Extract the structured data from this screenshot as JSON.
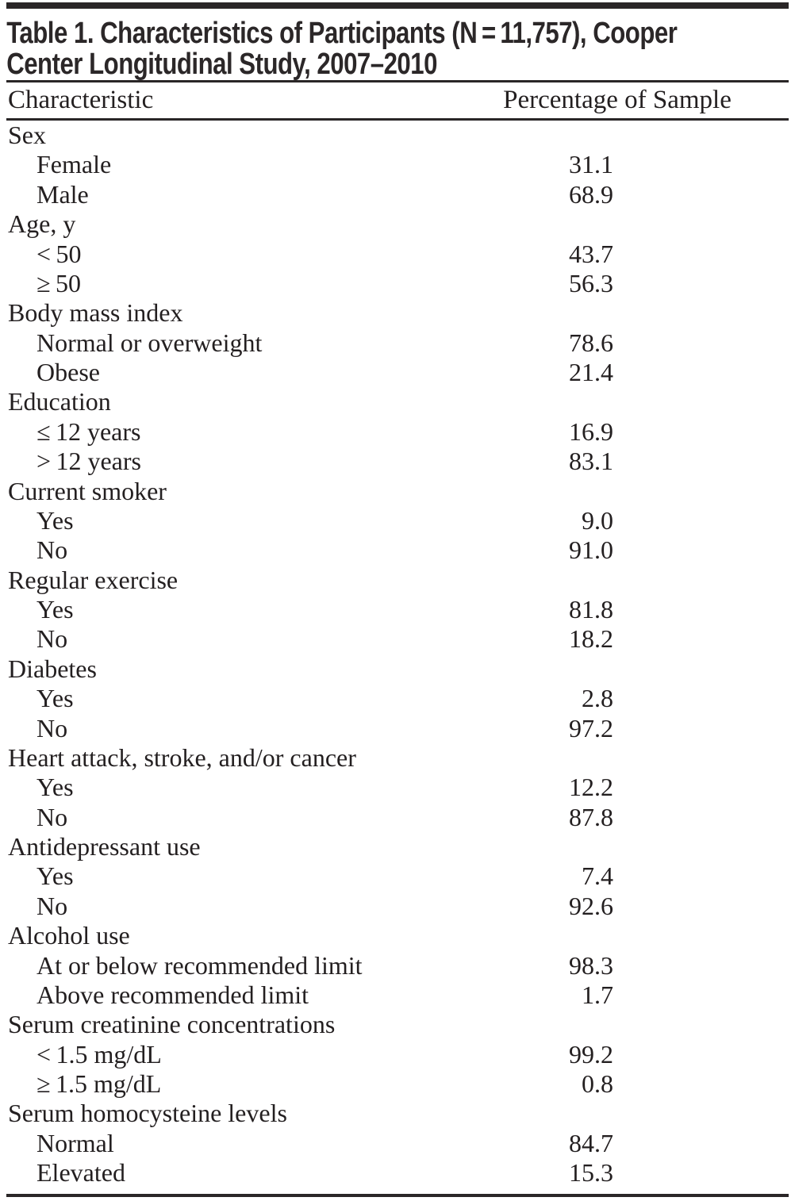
{
  "table": {
    "title": "Table 1. Characteristics of Participants (N = 11,757), Cooper Center Longitudinal Study, 2007–2010",
    "title_lines": [
      "Table 1. Characteristics of Participants (N = 11,757), Cooper",
      "Center Longitudinal Study, 2007–2010"
    ],
    "columns": [
      "Characteristic",
      "Percentage of Sample"
    ],
    "rows": [
      {
        "kind": "section",
        "label": "Sex",
        "value": ""
      },
      {
        "kind": "item",
        "label": "Female",
        "value": "31.1"
      },
      {
        "kind": "item",
        "label": "Male",
        "value": "68.9"
      },
      {
        "kind": "section",
        "label": "Age, y",
        "value": ""
      },
      {
        "kind": "item",
        "label": "< 50",
        "value": "43.7"
      },
      {
        "kind": "item",
        "label": "≥ 50",
        "value": "56.3"
      },
      {
        "kind": "section",
        "label": "Body mass index",
        "value": ""
      },
      {
        "kind": "item",
        "label": "Normal or overweight",
        "value": "78.6"
      },
      {
        "kind": "item",
        "label": "Obese",
        "value": "21.4"
      },
      {
        "kind": "section",
        "label": "Education",
        "value": ""
      },
      {
        "kind": "item",
        "label": "≤ 12 years",
        "value": "16.9"
      },
      {
        "kind": "item",
        "label": "> 12 years",
        "value": "83.1"
      },
      {
        "kind": "section",
        "label": "Current smoker",
        "value": ""
      },
      {
        "kind": "item",
        "label": "Yes",
        "value": "9.0"
      },
      {
        "kind": "item",
        "label": "No",
        "value": "91.0"
      },
      {
        "kind": "section",
        "label": "Regular exercise",
        "value": ""
      },
      {
        "kind": "item",
        "label": "Yes",
        "value": "81.8"
      },
      {
        "kind": "item",
        "label": "No",
        "value": "18.2"
      },
      {
        "kind": "section",
        "label": "Diabetes",
        "value": ""
      },
      {
        "kind": "item",
        "label": "Yes",
        "value": "2.8"
      },
      {
        "kind": "item",
        "label": "No",
        "value": "97.2"
      },
      {
        "kind": "section",
        "label": "Heart attack, stroke, and/or cancer",
        "value": ""
      },
      {
        "kind": "item",
        "label": "Yes",
        "value": "12.2"
      },
      {
        "kind": "item",
        "label": "No",
        "value": "87.8"
      },
      {
        "kind": "section",
        "label": "Antidepressant use",
        "value": ""
      },
      {
        "kind": "item",
        "label": "Yes",
        "value": "7.4"
      },
      {
        "kind": "item",
        "label": "No",
        "value": "92.6"
      },
      {
        "kind": "section",
        "label": "Alcohol use",
        "value": ""
      },
      {
        "kind": "item",
        "label": "At or below recommended limit",
        "value": "98.3"
      },
      {
        "kind": "item",
        "label": "Above recommended limit",
        "value": "1.7"
      },
      {
        "kind": "section",
        "label": "Serum creatinine concentrations",
        "value": ""
      },
      {
        "kind": "item",
        "label": "< 1.5 mg/dL",
        "value": "99.2"
      },
      {
        "kind": "item",
        "label": "≥ 1.5 mg/dL",
        "value": "0.8"
      },
      {
        "kind": "section",
        "label": "Serum homocysteine levels",
        "value": ""
      },
      {
        "kind": "item",
        "label": "Normal",
        "value": "84.7"
      },
      {
        "kind": "item",
        "label": "Elevated",
        "value": "15.3"
      }
    ]
  },
  "chart_data": {
    "type": "table",
    "title": "Table 1. Characteristics of Participants (N = 11,757), Cooper Center Longitudinal Study, 2007–2010",
    "columns": [
      "Characteristic",
      "Percentage of Sample"
    ],
    "groups": [
      {
        "category": "Sex",
        "entries": [
          [
            "Female",
            31.1
          ],
          [
            "Male",
            68.9
          ]
        ]
      },
      {
        "category": "Age, y",
        "entries": [
          [
            "< 50",
            43.7
          ],
          [
            "≥ 50",
            56.3
          ]
        ]
      },
      {
        "category": "Body mass index",
        "entries": [
          [
            "Normal or overweight",
            78.6
          ],
          [
            "Obese",
            21.4
          ]
        ]
      },
      {
        "category": "Education",
        "entries": [
          [
            "≤ 12 years",
            16.9
          ],
          [
            "> 12 years",
            83.1
          ]
        ]
      },
      {
        "category": "Current smoker",
        "entries": [
          [
            "Yes",
            9.0
          ],
          [
            "No",
            91.0
          ]
        ]
      },
      {
        "category": "Regular exercise",
        "entries": [
          [
            "Yes",
            81.8
          ],
          [
            "No",
            18.2
          ]
        ]
      },
      {
        "category": "Diabetes",
        "entries": [
          [
            "Yes",
            2.8
          ],
          [
            "No",
            97.2
          ]
        ]
      },
      {
        "category": "Heart attack, stroke, and/or cancer",
        "entries": [
          [
            "Yes",
            12.2
          ],
          [
            "No",
            87.8
          ]
        ]
      },
      {
        "category": "Antidepressant use",
        "entries": [
          [
            "Yes",
            7.4
          ],
          [
            "No",
            92.6
          ]
        ]
      },
      {
        "category": "Alcohol use",
        "entries": [
          [
            "At or below recommended limit",
            98.3
          ],
          [
            "Above recommended limit",
            1.7
          ]
        ]
      },
      {
        "category": "Serum creatinine concentrations",
        "entries": [
          [
            "< 1.5 mg/dL",
            99.2
          ],
          [
            "≥ 1.5 mg/dL",
            0.8
          ]
        ]
      },
      {
        "category": "Serum homocysteine levels",
        "entries": [
          [
            "Normal",
            84.7
          ],
          [
            "Elevated",
            15.3
          ]
        ]
      }
    ]
  }
}
